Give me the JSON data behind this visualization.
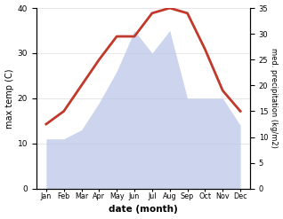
{
  "months": [
    "Jan",
    "Feb",
    "Mar",
    "Apr",
    "May",
    "Jun",
    "Jul",
    "Aug",
    "Sep",
    "Oct",
    "Nov",
    "Dec"
  ],
  "temperature": [
    11.0,
    11.0,
    13.0,
    19.0,
    26.0,
    35.0,
    30.0,
    35.0,
    20.0,
    20.0,
    20.0,
    14.0
  ],
  "precipitation": [
    12.5,
    15.0,
    20.0,
    25.0,
    29.5,
    29.5,
    34.0,
    35.0,
    34.0,
    27.0,
    19.0,
    15.0
  ],
  "temp_fill_color": "#b8c4e8",
  "precip_line_color": "#c0392b",
  "xlabel": "date (month)",
  "ylabel_left": "max temp (C)",
  "ylabel_right": "med. precipitation (kg/m2)",
  "ylim_left": [
    0,
    40
  ],
  "ylim_right": [
    0,
    35
  ],
  "yticks_left": [
    0,
    10,
    20,
    30,
    40
  ],
  "yticks_right": [
    0,
    5,
    10,
    15,
    20,
    25,
    30,
    35
  ],
  "bg_color": "#ffffff",
  "precip_linewidth": 2.0,
  "grid_color": "#dddddd"
}
